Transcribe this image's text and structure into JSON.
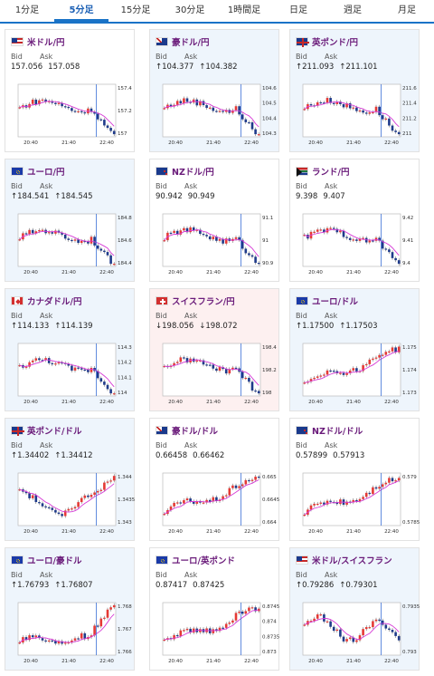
{
  "tabs": [
    "1分足",
    "5分足",
    "15分足",
    "30分足",
    "1時間足",
    "日足",
    "週足",
    "月足"
  ],
  "active_tab": 1,
  "labels": {
    "bid": "Bid",
    "ask": "Ask"
  },
  "time_ticks": [
    "20:40",
    "21:40",
    "22:40"
  ],
  "cards": [
    {
      "title": "米ドル/円",
      "flag": "us",
      "state": "none",
      "bid": "157.056",
      "ask": "157.058",
      "y_ticks": [
        "157.4",
        "157.2",
        "157"
      ],
      "trend": "drop"
    },
    {
      "title": "豪ドル/円",
      "flag": "au",
      "state": "up",
      "bid": "↑104.377",
      "ask": "↑104.382",
      "y_ticks": [
        "104.6",
        "104.5",
        "104.4",
        "104.3"
      ],
      "trend": "drop"
    },
    {
      "title": "英ポンド/円",
      "flag": "uk",
      "state": "up",
      "bid": "↑211.093",
      "ask": "↑211.101",
      "y_ticks": [
        "211.6",
        "211.4",
        "211.2",
        "211"
      ],
      "trend": "drop"
    },
    {
      "title": "ユーロ/円",
      "flag": "eu",
      "state": "up",
      "bid": "↑184.541",
      "ask": "↑184.545",
      "y_ticks": [
        "184.8",
        "184.6",
        "184.4"
      ],
      "trend": "drop"
    },
    {
      "title": "NZドル/円",
      "flag": "nz",
      "state": "none",
      "bid": "90.942",
      "ask": "90.949",
      "y_ticks": [
        "91.1",
        "91",
        "90.9"
      ],
      "trend": "drop"
    },
    {
      "title": "ランド/円",
      "flag": "za",
      "state": "none",
      "bid": "9.398",
      "ask": "9.407",
      "y_ticks": [
        "9.42",
        "9.41",
        "9.4"
      ],
      "trend": "drop"
    },
    {
      "title": "カナダドル/円",
      "flag": "ca",
      "state": "up",
      "bid": "↑114.133",
      "ask": "↑114.139",
      "y_ticks": [
        "114.3",
        "114.2",
        "114.1",
        "114"
      ],
      "trend": "drop"
    },
    {
      "title": "スイスフラン/円",
      "flag": "ch",
      "state": "down",
      "bid": "↓198.056",
      "ask": "↓198.072",
      "y_ticks": [
        "198.4",
        "198.2",
        "198"
      ],
      "trend": "drop"
    },
    {
      "title": "ユーロ/ドル",
      "flag": "eu",
      "state": "up",
      "bid": "↑1.17500",
      "ask": "↑1.17503",
      "y_ticks": [
        "1.175",
        "1.174",
        "1.173"
      ],
      "trend": "rise"
    },
    {
      "title": "英ポンド/ドル",
      "flag": "uk",
      "state": "up",
      "bid": "↑1.34402",
      "ask": "↑1.34412",
      "y_ticks": [
        "1.344",
        "1.3435",
        "1.343"
      ],
      "trend": "vee"
    },
    {
      "title": "豪ドル/ドル",
      "flag": "au",
      "state": "none",
      "bid": "0.66458",
      "ask": "0.66462",
      "y_ticks": [
        "0.665",
        "0.6645",
        "0.664"
      ],
      "trend": "rise"
    },
    {
      "title": "NZドル/ドル",
      "flag": "nz",
      "state": "none",
      "bid": "0.57899",
      "ask": "0.57913",
      "y_ticks": [
        "0.579",
        "0.5785"
      ],
      "trend": "rise"
    },
    {
      "title": "ユーロ/豪ドル",
      "flag": "eu",
      "state": "up",
      "bid": "↑1.76793",
      "ask": "↑1.76807",
      "y_ticks": [
        "1.768",
        "1.767",
        "1.766"
      ],
      "trend": "late"
    },
    {
      "title": "ユーロ/英ポンド",
      "flag": "eu",
      "state": "none",
      "bid": "0.87417",
      "ask": "0.87425",
      "y_ticks": [
        "0.8745",
        "0.874",
        "0.8735",
        "0.873"
      ],
      "trend": "rise"
    },
    {
      "title": "米ドル/スイスフラン",
      "flag": "us",
      "state": "up",
      "bid": "↑0.79286",
      "ask": "↑0.79301",
      "y_ticks": [
        "0.7935",
        "0.793"
      ],
      "trend": "chop"
    }
  ]
}
